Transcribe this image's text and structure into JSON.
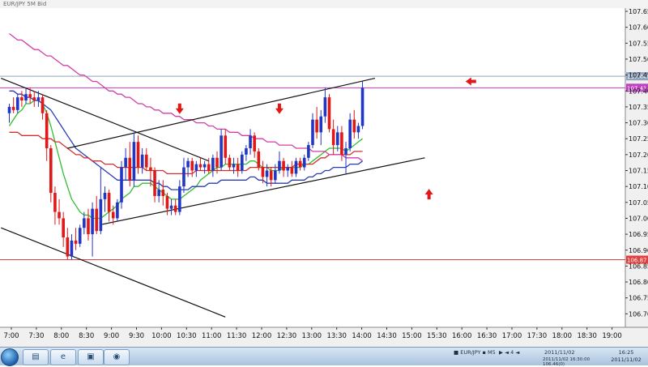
{
  "window": {
    "title": "EUR/JPY 5M Bid"
  },
  "taskbar": {
    "buttons": [
      {
        "icon": "folder-icon",
        "glyph": "▤"
      },
      {
        "icon": "internet-explorer-icon",
        "glyph": "e"
      },
      {
        "icon": "window-icon",
        "glyph": "▣"
      },
      {
        "icon": "chart-app-icon",
        "glyph": "◉"
      }
    ],
    "tray_items": [
      "■ EUR/JPY ▪ M5",
      "▶ ◄ 4 ◄",
      "2011/11/02"
    ],
    "status_line": "2011/11/02 16:30:00  106.46(0)",
    "clock_time": "16:25",
    "clock_date": "2011/11/02"
  },
  "chart_data": {
    "type": "candlestick",
    "symbol": "EUR/JPY",
    "timeframe": "5M",
    "price_side": "Bid",
    "ylim": [
      106.65,
      107.65
    ],
    "y_ticks": [
      {
        "v": 107.65,
        "t": "107.65(0)"
      },
      {
        "v": 107.6,
        "t": "107.60(0)"
      },
      {
        "v": 107.55,
        "t": "107.55(0)"
      },
      {
        "v": 107.5,
        "t": "107.50(0)"
      },
      {
        "v": 107.45,
        "t": "107.45(0)"
      },
      {
        "v": 107.4,
        "t": "107.40(0)"
      },
      {
        "v": 107.35,
        "t": "107.35(0)"
      },
      {
        "v": 107.3,
        "t": "107.30(0)"
      },
      {
        "v": 107.25,
        "t": "107.25(0)"
      },
      {
        "v": 107.2,
        "t": "107.20(0)"
      },
      {
        "v": 107.15,
        "t": "107.15(0)"
      },
      {
        "v": 107.1,
        "t": "107.10(0)"
      },
      {
        "v": 107.05,
        "t": "107.05(0)"
      },
      {
        "v": 107.0,
        "t": "107.00(0)"
      },
      {
        "v": 106.95,
        "t": "106.95(0)"
      },
      {
        "v": 106.9,
        "t": "106.90(0)"
      },
      {
        "v": 106.85,
        "t": "106.85(0)"
      },
      {
        "v": 106.8,
        "t": "106.80(0)"
      },
      {
        "v": 106.75,
        "t": "106.75(0)"
      },
      {
        "v": 106.7,
        "t": "106.70(0)"
      }
    ],
    "x_ticks": [
      "7:00",
      "7:30",
      "8:00",
      "8:30",
      "9:00",
      "9:30",
      "10:00",
      "10:30",
      "11:00",
      "11:30",
      "12:00",
      "12:30",
      "13:00",
      "13:30",
      "14:00",
      "14:30",
      "15:00",
      "15:30",
      "16:00",
      "16:30",
      "17:00",
      "17:30",
      "18:00",
      "18:30",
      "19:00"
    ],
    "candles": [
      {
        "o": 107.33,
        "h": 107.36,
        "l": 107.3,
        "c": 107.35
      },
      {
        "o": 107.35,
        "h": 107.38,
        "l": 107.33,
        "c": 107.34
      },
      {
        "o": 107.34,
        "h": 107.39,
        "l": 107.33,
        "c": 107.38
      },
      {
        "o": 107.38,
        "h": 107.4,
        "l": 107.35,
        "c": 107.37
      },
      {
        "o": 107.37,
        "h": 107.41,
        "l": 107.36,
        "c": 107.39
      },
      {
        "o": 107.39,
        "h": 107.41,
        "l": 107.36,
        "c": 107.38
      },
      {
        "o": 107.38,
        "h": 107.4,
        "l": 107.35,
        "c": 107.37
      },
      {
        "o": 107.37,
        "h": 107.4,
        "l": 107.35,
        "c": 107.38
      },
      {
        "o": 107.38,
        "h": 107.39,
        "l": 107.31,
        "c": 107.33
      },
      {
        "o": 107.33,
        "h": 107.34,
        "l": 107.18,
        "c": 107.22
      },
      {
        "o": 107.22,
        "h": 107.23,
        "l": 107.05,
        "c": 107.08
      },
      {
        "o": 107.08,
        "h": 107.1,
        "l": 106.98,
        "c": 107.02
      },
      {
        "o": 107.02,
        "h": 107.06,
        "l": 106.98,
        "c": 107.0
      },
      {
        "o": 107.0,
        "h": 107.02,
        "l": 106.91,
        "c": 106.94
      },
      {
        "o": 106.94,
        "h": 106.97,
        "l": 106.87,
        "c": 106.88
      },
      {
        "o": 106.88,
        "h": 106.95,
        "l": 106.87,
        "c": 106.93
      },
      {
        "o": 106.93,
        "h": 106.97,
        "l": 106.9,
        "c": 106.92
      },
      {
        "o": 106.92,
        "h": 106.98,
        "l": 106.91,
        "c": 106.97
      },
      {
        "o": 106.97,
        "h": 107.02,
        "l": 106.95,
        "c": 107.0
      },
      {
        "o": 107.0,
        "h": 107.03,
        "l": 106.93,
        "c": 106.95
      },
      {
        "o": 106.95,
        "h": 107.05,
        "l": 106.88,
        "c": 107.03
      },
      {
        "o": 107.03,
        "h": 107.07,
        "l": 106.95,
        "c": 106.96
      },
      {
        "o": 106.96,
        "h": 107.16,
        "l": 106.95,
        "c": 107.06
      },
      {
        "o": 107.06,
        "h": 107.1,
        "l": 107.02,
        "c": 107.08
      },
      {
        "o": 107.08,
        "h": 107.09,
        "l": 106.99,
        "c": 107.02
      },
      {
        "o": 107.02,
        "h": 107.04,
        "l": 106.98,
        "c": 107.0
      },
      {
        "o": 107.0,
        "h": 107.06,
        "l": 106.99,
        "c": 107.05
      },
      {
        "o": 107.05,
        "h": 107.18,
        "l": 107.03,
        "c": 107.16
      },
      {
        "o": 107.16,
        "h": 107.22,
        "l": 107.12,
        "c": 107.19
      },
      {
        "o": 107.19,
        "h": 107.24,
        "l": 107.1,
        "c": 107.12
      },
      {
        "o": 107.12,
        "h": 107.27,
        "l": 107.1,
        "c": 107.24
      },
      {
        "o": 107.24,
        "h": 107.26,
        "l": 107.14,
        "c": 107.16
      },
      {
        "o": 107.16,
        "h": 107.22,
        "l": 107.14,
        "c": 107.2
      },
      {
        "o": 107.2,
        "h": 107.22,
        "l": 107.15,
        "c": 107.16
      },
      {
        "o": 107.16,
        "h": 107.19,
        "l": 107.1,
        "c": 107.15
      },
      {
        "o": 107.15,
        "h": 107.16,
        "l": 107.05,
        "c": 107.07
      },
      {
        "o": 107.07,
        "h": 107.12,
        "l": 107.05,
        "c": 107.09
      },
      {
        "o": 107.09,
        "h": 107.12,
        "l": 107.04,
        "c": 107.07
      },
      {
        "o": 107.07,
        "h": 107.08,
        "l": 107.01,
        "c": 107.03
      },
      {
        "o": 107.03,
        "h": 107.06,
        "l": 107.01,
        "c": 107.04
      },
      {
        "o": 107.04,
        "h": 107.06,
        "l": 107.01,
        "c": 107.02
      },
      {
        "o": 107.02,
        "h": 107.12,
        "l": 107.01,
        "c": 107.1
      },
      {
        "o": 107.1,
        "h": 107.19,
        "l": 107.08,
        "c": 107.16
      },
      {
        "o": 107.16,
        "h": 107.19,
        "l": 107.13,
        "c": 107.18
      },
      {
        "o": 107.18,
        "h": 107.19,
        "l": 107.13,
        "c": 107.15
      },
      {
        "o": 107.15,
        "h": 107.18,
        "l": 107.13,
        "c": 107.17
      },
      {
        "o": 107.17,
        "h": 107.19,
        "l": 107.15,
        "c": 107.16
      },
      {
        "o": 107.16,
        "h": 107.18,
        "l": 107.14,
        "c": 107.17
      },
      {
        "o": 107.17,
        "h": 107.19,
        "l": 107.14,
        "c": 107.15
      },
      {
        "o": 107.15,
        "h": 107.2,
        "l": 107.13,
        "c": 107.19
      },
      {
        "o": 107.19,
        "h": 107.21,
        "l": 107.14,
        "c": 107.16
      },
      {
        "o": 107.16,
        "h": 107.28,
        "l": 107.15,
        "c": 107.26
      },
      {
        "o": 107.26,
        "h": 107.28,
        "l": 107.17,
        "c": 107.19
      },
      {
        "o": 107.19,
        "h": 107.2,
        "l": 107.15,
        "c": 107.16
      },
      {
        "o": 107.16,
        "h": 107.19,
        "l": 107.14,
        "c": 107.17
      },
      {
        "o": 107.17,
        "h": 107.19,
        "l": 107.13,
        "c": 107.15
      },
      {
        "o": 107.15,
        "h": 107.21,
        "l": 107.14,
        "c": 107.2
      },
      {
        "o": 107.2,
        "h": 107.23,
        "l": 107.18,
        "c": 107.22
      },
      {
        "o": 107.22,
        "h": 107.28,
        "l": 107.2,
        "c": 107.26
      },
      {
        "o": 107.26,
        "h": 107.27,
        "l": 107.19,
        "c": 107.21
      },
      {
        "o": 107.21,
        "h": 107.22,
        "l": 107.15,
        "c": 107.16
      },
      {
        "o": 107.16,
        "h": 107.18,
        "l": 107.11,
        "c": 107.13
      },
      {
        "o": 107.13,
        "h": 107.17,
        "l": 107.1,
        "c": 107.15
      },
      {
        "o": 107.15,
        "h": 107.16,
        "l": 107.1,
        "c": 107.12
      },
      {
        "o": 107.12,
        "h": 107.17,
        "l": 107.11,
        "c": 107.15
      },
      {
        "o": 107.15,
        "h": 107.21,
        "l": 107.14,
        "c": 107.18
      },
      {
        "o": 107.18,
        "h": 107.19,
        "l": 107.13,
        "c": 107.15
      },
      {
        "o": 107.15,
        "h": 107.17,
        "l": 107.13,
        "c": 107.16
      },
      {
        "o": 107.16,
        "h": 107.18,
        "l": 107.13,
        "c": 107.14
      },
      {
        "o": 107.14,
        "h": 107.19,
        "l": 107.13,
        "c": 107.18
      },
      {
        "o": 107.18,
        "h": 107.19,
        "l": 107.15,
        "c": 107.16
      },
      {
        "o": 107.16,
        "h": 107.2,
        "l": 107.15,
        "c": 107.19
      },
      {
        "o": 107.19,
        "h": 107.24,
        "l": 107.18,
        "c": 107.23
      },
      {
        "o": 107.23,
        "h": 107.33,
        "l": 107.22,
        "c": 107.31
      },
      {
        "o": 107.31,
        "h": 107.35,
        "l": 107.25,
        "c": 107.27
      },
      {
        "o": 107.27,
        "h": 107.34,
        "l": 107.23,
        "c": 107.32
      },
      {
        "o": 107.32,
        "h": 107.41,
        "l": 107.3,
        "c": 107.38
      },
      {
        "o": 107.38,
        "h": 107.39,
        "l": 107.27,
        "c": 107.28
      },
      {
        "o": 107.28,
        "h": 107.31,
        "l": 107.2,
        "c": 107.23
      },
      {
        "o": 107.23,
        "h": 107.29,
        "l": 107.21,
        "c": 107.27
      },
      {
        "o": 107.27,
        "h": 107.29,
        "l": 107.18,
        "c": 107.2
      },
      {
        "o": 107.2,
        "h": 107.24,
        "l": 107.14,
        "c": 107.22
      },
      {
        "o": 107.22,
        "h": 107.33,
        "l": 107.21,
        "c": 107.31
      },
      {
        "o": 107.31,
        "h": 107.34,
        "l": 107.25,
        "c": 107.27
      },
      {
        "o": 107.27,
        "h": 107.3,
        "l": 107.25,
        "c": 107.29
      },
      {
        "o": 107.29,
        "h": 107.43,
        "l": 107.28,
        "c": 107.41
      }
    ],
    "moving_averages": [
      {
        "color": "#2fbf2f",
        "values": [
          107.29,
          107.31,
          107.33,
          107.34,
          107.36,
          107.36,
          107.37,
          107.37,
          107.36,
          107.33,
          107.29,
          107.24,
          107.19,
          107.14,
          107.1,
          107.06,
          107.04,
          107.02,
          107.01,
          107.01,
          107.0,
          107.0,
          107.0,
          107.01,
          107.02,
          107.03,
          107.04,
          107.06,
          107.07,
          107.08,
          107.1,
          107.1,
          107.11,
          107.11,
          107.11,
          107.1,
          107.09,
          107.08,
          107.07,
          107.06,
          107.06,
          107.06,
          107.07,
          107.08,
          107.09,
          107.1,
          107.12,
          107.13,
          107.14,
          107.15,
          107.16,
          107.16,
          107.17,
          107.17,
          107.17,
          107.17,
          107.17,
          107.17,
          107.18,
          107.18,
          107.17,
          107.16,
          107.16,
          107.15,
          107.15,
          107.15,
          107.16,
          107.16,
          107.16,
          107.16,
          107.16,
          107.17,
          107.17,
          107.18,
          107.19,
          107.2,
          107.21,
          107.22,
          107.22,
          107.22,
          107.22,
          107.21,
          107.22,
          107.23,
          107.24,
          107.25
        ]
      },
      {
        "color": "#2b3bb8",
        "values": [
          107.4,
          107.4,
          107.39,
          107.39,
          107.38,
          107.38,
          107.37,
          107.37,
          107.36,
          107.35,
          107.34,
          107.32,
          107.3,
          107.28,
          107.26,
          107.24,
          107.22,
          107.21,
          107.2,
          107.19,
          107.18,
          107.17,
          107.16,
          107.15,
          107.14,
          107.13,
          107.12,
          107.12,
          107.12,
          107.12,
          107.12,
          107.12,
          107.12,
          107.12,
          107.12,
          107.11,
          107.11,
          107.1,
          107.1,
          107.09,
          107.09,
          107.09,
          107.09,
          107.09,
          107.1,
          107.1,
          107.1,
          107.1,
          107.11,
          107.11,
          107.11,
          107.12,
          107.12,
          107.12,
          107.12,
          107.12,
          107.12,
          107.12,
          107.13,
          107.13,
          107.12,
          107.12,
          107.11,
          107.11,
          107.11,
          107.11,
          107.11,
          107.11,
          107.12,
          107.12,
          107.12,
          107.12,
          107.13,
          107.13,
          107.14,
          107.14,
          107.15,
          107.15,
          107.16,
          107.16,
          107.16,
          107.16,
          107.17,
          107.17,
          107.17,
          107.18
        ]
      },
      {
        "color": "#d03030",
        "values": [
          107.27,
          107.27,
          107.27,
          107.26,
          107.26,
          107.26,
          107.26,
          107.26,
          107.25,
          107.25,
          107.25,
          107.24,
          107.24,
          107.23,
          107.22,
          107.21,
          107.2,
          107.2,
          107.19,
          107.19,
          107.18,
          107.18,
          107.18,
          107.17,
          107.17,
          107.17,
          107.16,
          107.16,
          107.16,
          107.16,
          107.16,
          107.16,
          107.16,
          107.15,
          107.15,
          107.15,
          107.15,
          107.15,
          107.14,
          107.14,
          107.14,
          107.14,
          107.14,
          107.14,
          107.14,
          107.15,
          107.15,
          107.15,
          107.15,
          107.15,
          107.15,
          107.15,
          107.15,
          107.15,
          107.15,
          107.15,
          107.15,
          107.15,
          107.16,
          107.16,
          107.16,
          107.16,
          107.16,
          107.16,
          107.16,
          107.16,
          107.16,
          107.16,
          107.16,
          107.17,
          107.17,
          107.17,
          107.17,
          107.17,
          107.18,
          107.19,
          107.19,
          107.2,
          107.2,
          107.2,
          107.2,
          107.2,
          107.2,
          107.21,
          107.21,
          107.21
        ]
      },
      {
        "color": "#d23fa8",
        "values": [
          107.58,
          107.57,
          107.56,
          107.56,
          107.55,
          107.54,
          107.53,
          107.53,
          107.52,
          107.51,
          107.51,
          107.5,
          107.49,
          107.48,
          107.48,
          107.47,
          107.46,
          107.45,
          107.45,
          107.44,
          107.43,
          107.43,
          107.42,
          107.41,
          107.4,
          107.4,
          107.39,
          107.39,
          107.38,
          107.38,
          107.37,
          107.36,
          107.36,
          107.35,
          107.35,
          107.34,
          107.34,
          107.33,
          107.33,
          107.33,
          107.32,
          107.32,
          107.31,
          107.31,
          107.31,
          107.3,
          107.3,
          107.3,
          107.29,
          107.29,
          107.28,
          107.28,
          107.28,
          107.27,
          107.27,
          107.27,
          107.26,
          107.26,
          107.26,
          107.25,
          107.25,
          107.25,
          107.24,
          107.24,
          107.24,
          107.23,
          107.23,
          107.23,
          107.23,
          107.22,
          107.22,
          107.22,
          107.22,
          107.21,
          107.21,
          107.21,
          107.21,
          107.2,
          107.2,
          107.2,
          107.2,
          107.19,
          107.19,
          107.19,
          107.19,
          107.18
        ]
      }
    ],
    "trendlines": [
      {
        "x1": -2,
        "y1": 107.44,
        "x2": 48,
        "y2": 107.18
      },
      {
        "x1": -2,
        "y1": 106.97,
        "x2": 52,
        "y2": 106.69
      },
      {
        "x1": 14,
        "y1": 107.22,
        "x2": 88,
        "y2": 107.44
      },
      {
        "x1": 22,
        "y1": 106.98,
        "x2": 100,
        "y2": 107.19
      }
    ],
    "horizontal_lines": [
      {
        "value": 107.446,
        "color": "#8fa3bd",
        "label": "107.446",
        "label_bg": "#8fa3bd"
      },
      {
        "value": 107.41,
        "color": "#c040c0",
        "label": "107.41",
        "label_bg": "#c040c0"
      },
      {
        "value": 106.87,
        "color": "#e04040",
        "label": "106.87",
        "label_bg": "#e04040"
      }
    ],
    "arrows": [
      {
        "dir": "down",
        "x": 41,
        "y": 107.33
      },
      {
        "dir": "down",
        "x": 65,
        "y": 107.33
      },
      {
        "dir": "up",
        "x": 101,
        "y": 107.09
      },
      {
        "dir": "left",
        "x": 110,
        "y": 107.43
      }
    ],
    "colors": {
      "up": "#2236c4",
      "down": "#e01818",
      "background": "#ffffff",
      "axis_panel": "#f0f0f0"
    }
  }
}
